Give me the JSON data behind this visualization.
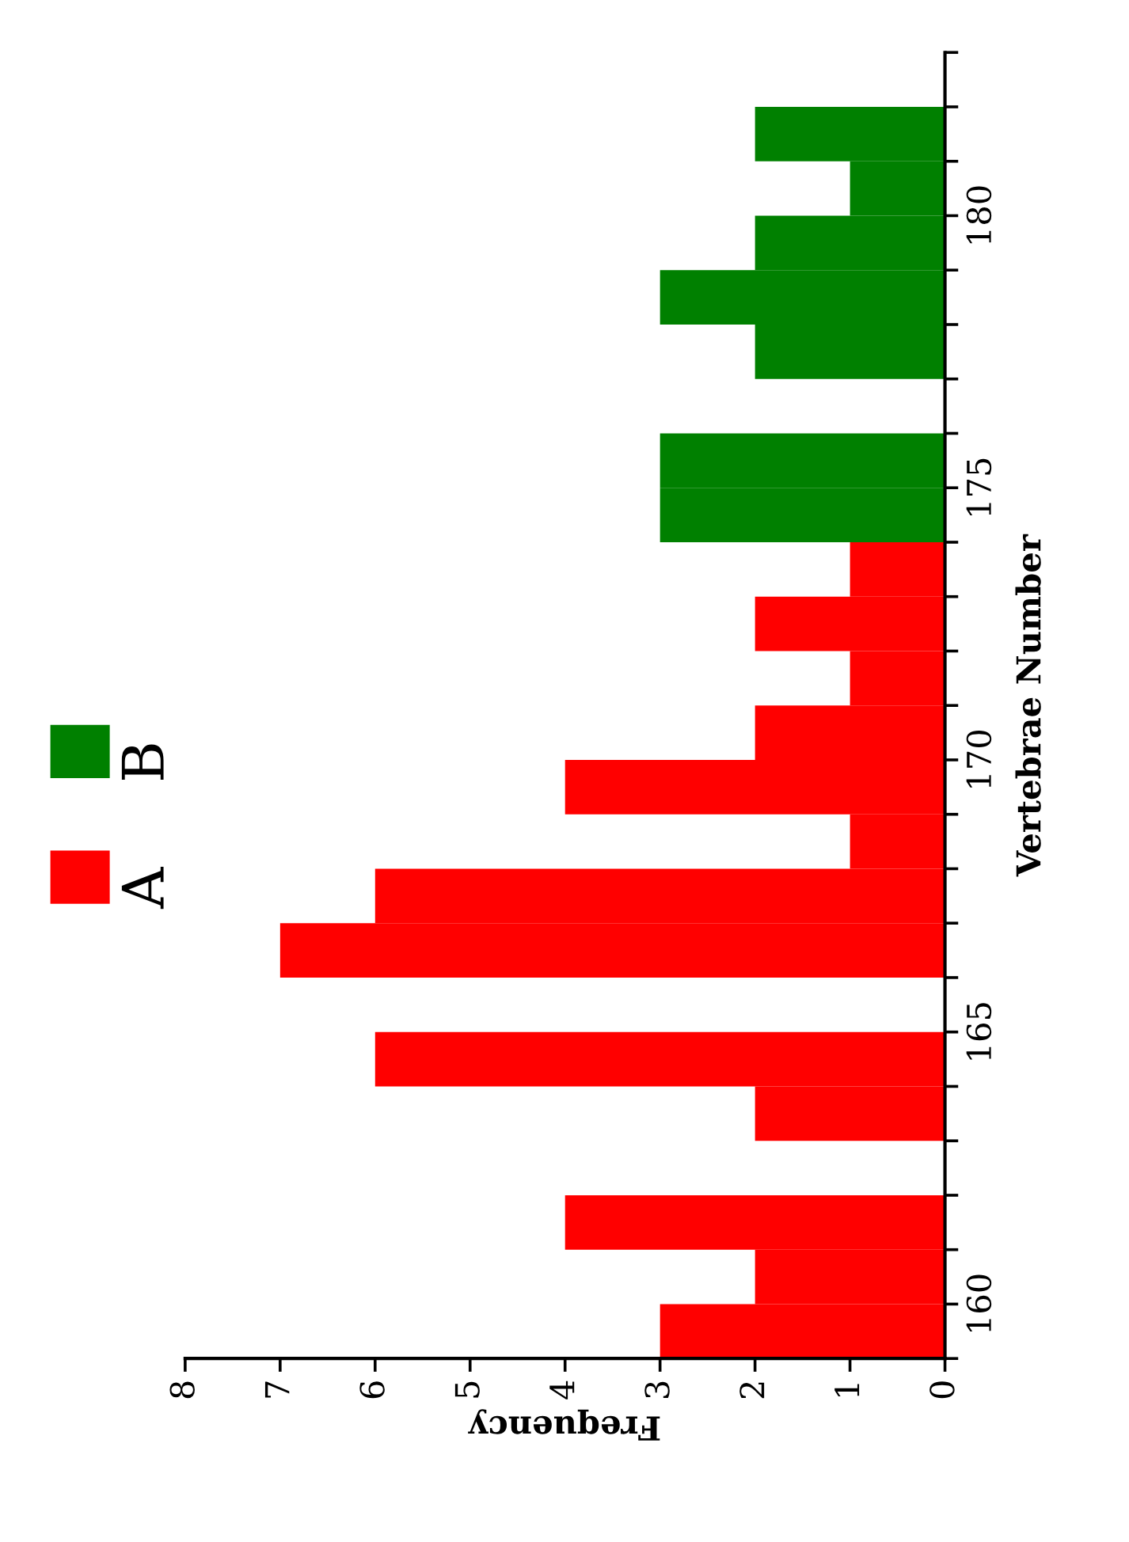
{
  "chart_data": {
    "type": "histogram",
    "orientation": "horizontal",
    "xlabel": "Frequency",
    "ylabel": "Vertebrae Number",
    "bins": [
      159,
      160,
      161,
      162,
      163,
      164,
      165,
      166,
      167,
      168,
      169,
      170,
      171,
      172,
      173,
      174,
      175,
      176,
      177,
      178,
      179,
      180,
      181,
      182
    ],
    "series": [
      {
        "name": "A",
        "color": "#ff0000",
        "values": [
          3,
          2,
          4,
          0,
          2,
          6,
          0,
          7,
          6,
          1,
          4,
          2,
          1,
          2,
          1,
          null,
          null,
          null,
          null,
          null,
          null,
          null,
          null
        ]
      },
      {
        "name": "B",
        "color": "#008000",
        "values": [
          null,
          null,
          null,
          null,
          null,
          null,
          null,
          null,
          null,
          null,
          null,
          null,
          null,
          null,
          null,
          3,
          3,
          0,
          2,
          3,
          2,
          1,
          2
        ]
      }
    ],
    "xlim": [
      8,
      0
    ],
    "xticks": [
      0,
      1,
      2,
      3,
      4,
      5,
      6,
      7,
      8
    ],
    "ylim": [
      159,
      183
    ],
    "yticks": [
      {
        "value": 159,
        "label": null
      },
      160,
      {
        "value": 161,
        "label": null
      },
      {
        "value": 162,
        "label": null
      },
      {
        "value": 163,
        "label": null
      },
      {
        "value": 164,
        "label": null
      },
      165,
      {
        "value": 166,
        "label": null
      },
      {
        "value": 167,
        "label": null
      },
      {
        "value": 168,
        "label": null
      },
      {
        "value": 169,
        "label": null
      },
      170,
      {
        "value": 171,
        "label": null
      },
      {
        "value": 172,
        "label": null
      },
      {
        "value": 173,
        "label": null
      },
      {
        "value": 174,
        "label": null
      },
      175,
      {
        "value": 176,
        "label": null
      },
      {
        "value": 177,
        "label": null
      },
      {
        "value": 178,
        "label": null
      },
      {
        "value": 179,
        "label": null
      },
      180,
      {
        "value": 181,
        "label": null
      },
      {
        "value": 182,
        "label": null
      },
      {
        "value": 183,
        "label": null
      }
    ],
    "grid": false,
    "legend": "left"
  }
}
